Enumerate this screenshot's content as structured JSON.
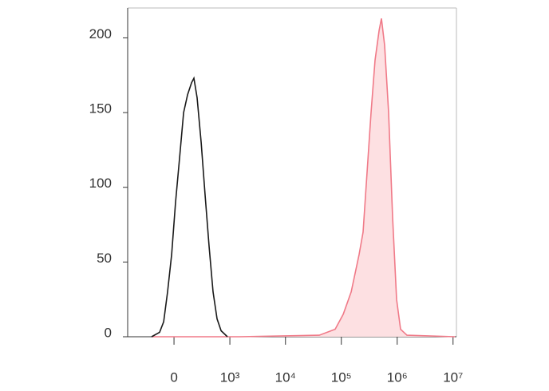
{
  "chart_data": {
    "type": "histogram-line",
    "xscale": "biexponential",
    "xlim": [
      -667,
      11500000
    ],
    "xticks": [
      0,
      {
        "value": 1000,
        "label": "10³"
      },
      {
        "value": 10000,
        "label": "10⁴"
      },
      {
        "value": 100000,
        "label": "10⁵"
      },
      {
        "value": 1000000,
        "label": "10⁶"
      },
      {
        "value": 10000000,
        "label": "10⁷"
      }
    ],
    "ylim": [
      0,
      220
    ],
    "yticks": [
      0,
      50,
      100,
      150,
      200
    ],
    "series": [
      {
        "color": "#1a1a1a",
        "fill": "none",
        "x": [
          -214,
          -127,
          -89,
          -54,
          -20,
          13,
          47,
          82,
          119,
          160,
          185,
          223,
          276,
          336,
          406,
          485,
          578,
          689,
          903
        ],
        "values": [
          0,
          3,
          10,
          30,
          55,
          90,
          120,
          150,
          162,
          170,
          173,
          160,
          130,
          95,
          60,
          30,
          12,
          4,
          0
        ]
      },
      {
        "color": "#f07a88",
        "fill": "#fde0e2",
        "x": [
          -214,
          1493,
          40200,
          77600,
          107900,
          149900,
          208000,
          245000,
          289000,
          341000,
          402000,
          474000,
          523000,
          596000,
          703000,
          828000,
          977000,
          1151000,
          1497000,
          10790000
        ],
        "values": [
          0,
          0,
          1,
          5,
          15,
          30,
          55,
          70,
          110,
          150,
          185,
          205,
          213,
          195,
          150,
          80,
          25,
          5,
          1,
          0
        ]
      }
    ]
  }
}
